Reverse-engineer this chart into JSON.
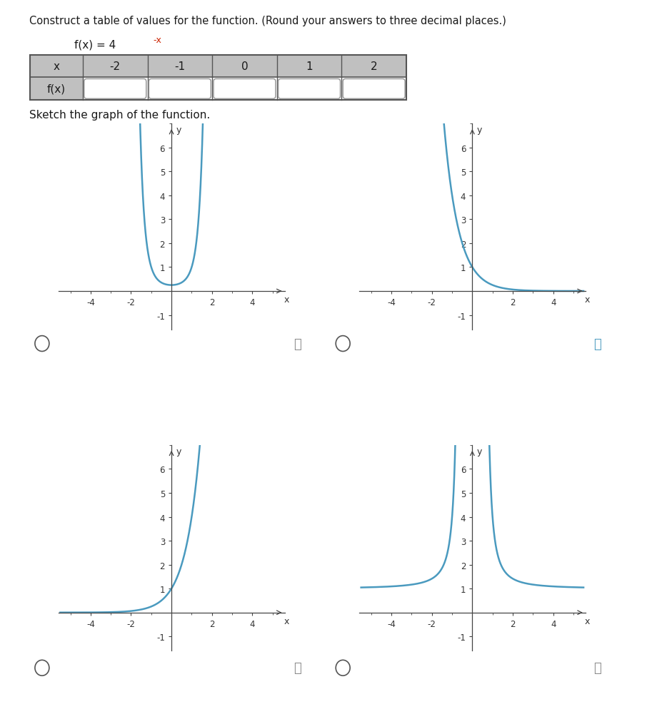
{
  "title": "Construct a table of values for the function. (Round your answers to three decimal places.)",
  "func_text": "f(x) = 4",
  "func_exp": "-x",
  "sketch_text": "Sketch the graph of the function.",
  "table_x_vals": [
    "-2",
    "-1",
    "0",
    "1",
    "2"
  ],
  "curve_color": "#4a9abf",
  "curve_lw": 1.8,
  "axis_color": "#444444",
  "bg_color": "#ffffff",
  "header_bg": "#c0c0c0",
  "box_edge": "#999999",
  "table_edge": "#555555",
  "radio_color": "#555555",
  "info_color_active": "#4a9abf",
  "info_color_dim": "#888888",
  "xlim": [
    -5.6,
    5.6
  ],
  "ylim": [
    -1.6,
    7.0
  ],
  "x_ticks": [
    -4,
    -2,
    2,
    4
  ],
  "y_ticks": [
    -1,
    1,
    2,
    3,
    4,
    5,
    6
  ]
}
